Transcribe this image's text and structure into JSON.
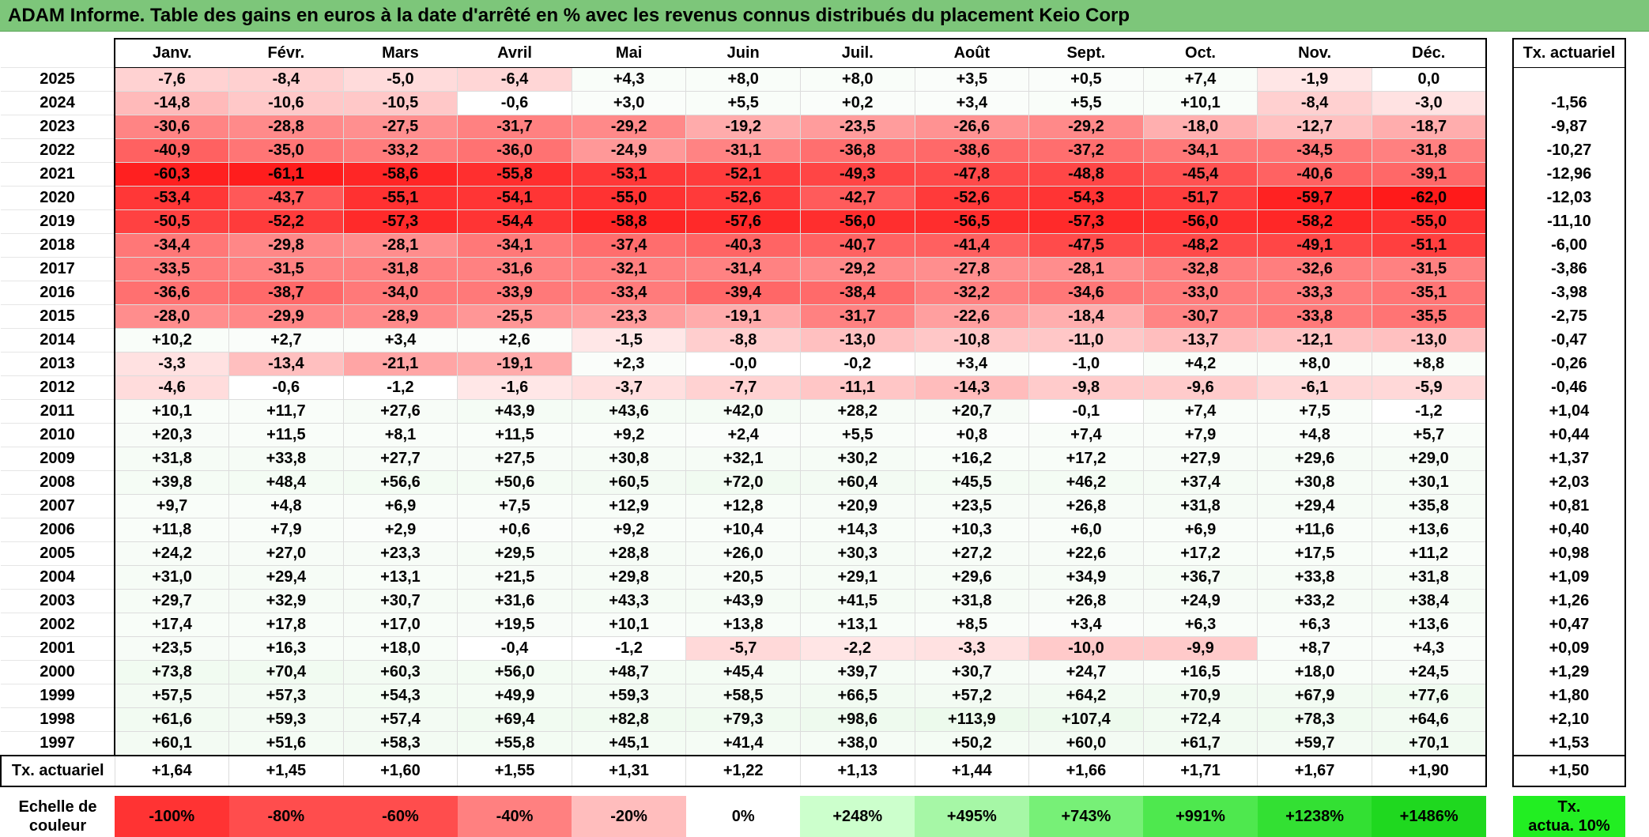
{
  "title": "ADAM Informe. Table des gains en euros à la date d'arrêté en % avec les revenus connus distribués du placement Keio Corp",
  "months": [
    "Janv.",
    "Févr.",
    "Mars",
    "Avril",
    "Mai",
    "Juin",
    "Juil.",
    "Août",
    "Sept.",
    "Oct.",
    "Nov.",
    "Déc."
  ],
  "tx_header": "Tx. actuariel",
  "rows": [
    {
      "year": "2025",
      "values": [
        "-7,6",
        "-8,4",
        "-5,0",
        "-6,4",
        "+4,3",
        "+8,0",
        "+8,0",
        "+3,5",
        "+0,5",
        "+7,4",
        "-1,9",
        "0,0"
      ],
      "tx": ""
    },
    {
      "year": "2024",
      "values": [
        "-14,8",
        "-10,6",
        "-10,5",
        "-0,6",
        "+3,0",
        "+5,5",
        "+0,2",
        "+3,4",
        "+5,5",
        "+10,1",
        "-8,4",
        "-3,0"
      ],
      "tx": "-1,56"
    },
    {
      "year": "2023",
      "values": [
        "-30,6",
        "-28,8",
        "-27,5",
        "-31,7",
        "-29,2",
        "-19,2",
        "-23,5",
        "-26,6",
        "-29,2",
        "-18,0",
        "-12,7",
        "-18,7"
      ],
      "tx": "-9,87"
    },
    {
      "year": "2022",
      "values": [
        "-40,9",
        "-35,0",
        "-33,2",
        "-36,0",
        "-24,9",
        "-31,1",
        "-36,8",
        "-38,6",
        "-37,2",
        "-34,1",
        "-34,5",
        "-31,8"
      ],
      "tx": "-10,27"
    },
    {
      "year": "2021",
      "values": [
        "-60,3",
        "-61,1",
        "-58,6",
        "-55,8",
        "-53,1",
        "-52,1",
        "-49,3",
        "-47,8",
        "-48,8",
        "-45,4",
        "-40,6",
        "-39,1"
      ],
      "tx": "-12,96"
    },
    {
      "year": "2020",
      "values": [
        "-53,4",
        "-43,7",
        "-55,1",
        "-54,1",
        "-55,0",
        "-52,6",
        "-42,7",
        "-52,6",
        "-54,3",
        "-51,7",
        "-59,7",
        "-62,0"
      ],
      "tx": "-12,03"
    },
    {
      "year": "2019",
      "values": [
        "-50,5",
        "-52,2",
        "-57,3",
        "-54,4",
        "-58,8",
        "-57,6",
        "-56,0",
        "-56,5",
        "-57,3",
        "-56,0",
        "-58,2",
        "-55,0"
      ],
      "tx": "-11,10"
    },
    {
      "year": "2018",
      "values": [
        "-34,4",
        "-29,8",
        "-28,1",
        "-34,1",
        "-37,4",
        "-40,3",
        "-40,7",
        "-41,4",
        "-47,5",
        "-48,2",
        "-49,1",
        "-51,1"
      ],
      "tx": "-6,00"
    },
    {
      "year": "2017",
      "values": [
        "-33,5",
        "-31,5",
        "-31,8",
        "-31,6",
        "-32,1",
        "-31,4",
        "-29,2",
        "-27,8",
        "-28,1",
        "-32,8",
        "-32,6",
        "-31,5"
      ],
      "tx": "-3,86"
    },
    {
      "year": "2016",
      "values": [
        "-36,6",
        "-38,7",
        "-34,0",
        "-33,9",
        "-33,4",
        "-39,4",
        "-38,4",
        "-32,2",
        "-34,6",
        "-33,0",
        "-33,3",
        "-35,1"
      ],
      "tx": "-3,98"
    },
    {
      "year": "2015",
      "values": [
        "-28,0",
        "-29,9",
        "-28,9",
        "-25,5",
        "-23,3",
        "-19,1",
        "-31,7",
        "-22,6",
        "-18,4",
        "-30,7",
        "-33,8",
        "-35,5"
      ],
      "tx": "-2,75"
    },
    {
      "year": "2014",
      "values": [
        "+10,2",
        "+2,7",
        "+3,4",
        "+2,6",
        "-1,5",
        "-8,8",
        "-13,0",
        "-10,8",
        "-11,0",
        "-13,7",
        "-12,1",
        "-13,0"
      ],
      "tx": "-0,47"
    },
    {
      "year": "2013",
      "values": [
        "-3,3",
        "-13,4",
        "-21,1",
        "-19,1",
        "+2,3",
        "-0,0",
        "-0,2",
        "+3,4",
        "-1,0",
        "+4,2",
        "+8,0",
        "+8,8"
      ],
      "tx": "-0,26"
    },
    {
      "year": "2012",
      "values": [
        "-4,6",
        "-0,6",
        "-1,2",
        "-1,6",
        "-3,7",
        "-7,7",
        "-11,1",
        "-14,3",
        "-9,8",
        "-9,6",
        "-6,1",
        "-5,9"
      ],
      "tx": "-0,46"
    },
    {
      "year": "2011",
      "values": [
        "+10,1",
        "+11,7",
        "+27,6",
        "+43,9",
        "+43,6",
        "+42,0",
        "+28,2",
        "+20,7",
        "-0,1",
        "+7,4",
        "+7,5",
        "-1,2"
      ],
      "tx": "+1,04"
    },
    {
      "year": "2010",
      "values": [
        "+20,3",
        "+11,5",
        "+8,1",
        "+11,5",
        "+9,2",
        "+2,4",
        "+5,5",
        "+0,8",
        "+7,4",
        "+7,9",
        "+4,8",
        "+5,7"
      ],
      "tx": "+0,44"
    },
    {
      "year": "2009",
      "values": [
        "+31,8",
        "+33,8",
        "+27,7",
        "+27,5",
        "+30,8",
        "+32,1",
        "+30,2",
        "+16,2",
        "+17,2",
        "+27,9",
        "+29,6",
        "+29,0"
      ],
      "tx": "+1,37"
    },
    {
      "year": "2008",
      "values": [
        "+39,8",
        "+48,4",
        "+56,6",
        "+50,6",
        "+60,5",
        "+72,0",
        "+60,4",
        "+45,5",
        "+46,2",
        "+37,4",
        "+30,8",
        "+30,1"
      ],
      "tx": "+2,03"
    },
    {
      "year": "2007",
      "values": [
        "+9,7",
        "+4,8",
        "+6,9",
        "+7,5",
        "+12,9",
        "+12,8",
        "+20,9",
        "+23,5",
        "+26,8",
        "+31,8",
        "+29,4",
        "+35,8"
      ],
      "tx": "+0,81"
    },
    {
      "year": "2006",
      "values": [
        "+11,8",
        "+7,9",
        "+2,9",
        "+0,6",
        "+9,2",
        "+10,4",
        "+14,3",
        "+10,3",
        "+6,0",
        "+6,9",
        "+11,6",
        "+13,6"
      ],
      "tx": "+0,40"
    },
    {
      "year": "2005",
      "values": [
        "+24,2",
        "+27,0",
        "+23,3",
        "+29,5",
        "+28,8",
        "+26,0",
        "+30,3",
        "+27,2",
        "+22,6",
        "+17,2",
        "+17,5",
        "+11,2"
      ],
      "tx": "+0,98"
    },
    {
      "year": "2004",
      "values": [
        "+31,0",
        "+29,4",
        "+13,1",
        "+21,5",
        "+29,8",
        "+20,5",
        "+29,1",
        "+29,6",
        "+34,9",
        "+36,7",
        "+33,8",
        "+31,8"
      ],
      "tx": "+1,09"
    },
    {
      "year": "2003",
      "values": [
        "+29,7",
        "+32,9",
        "+30,7",
        "+31,6",
        "+43,3",
        "+43,9",
        "+41,5",
        "+31,8",
        "+26,8",
        "+24,9",
        "+33,2",
        "+38,4"
      ],
      "tx": "+1,26"
    },
    {
      "year": "2002",
      "values": [
        "+17,4",
        "+17,8",
        "+17,0",
        "+19,5",
        "+10,1",
        "+13,8",
        "+13,1",
        "+8,5",
        "+3,4",
        "+6,3",
        "+6,3",
        "+13,6"
      ],
      "tx": "+0,47"
    },
    {
      "year": "2001",
      "values": [
        "+23,5",
        "+16,3",
        "+18,0",
        "-0,4",
        "-1,2",
        "-5,7",
        "-2,2",
        "-3,3",
        "-10,0",
        "-9,9",
        "+8,7",
        "+4,3"
      ],
      "tx": "+0,09"
    },
    {
      "year": "2000",
      "values": [
        "+73,8",
        "+70,4",
        "+60,3",
        "+56,0",
        "+48,7",
        "+45,4",
        "+39,7",
        "+30,7",
        "+24,7",
        "+16,5",
        "+18,0",
        "+24,5"
      ],
      "tx": "+1,29"
    },
    {
      "year": "1999",
      "values": [
        "+57,5",
        "+57,3",
        "+54,3",
        "+49,9",
        "+59,3",
        "+58,5",
        "+66,5",
        "+57,2",
        "+64,2",
        "+70,9",
        "+67,9",
        "+77,6"
      ],
      "tx": "+1,80"
    },
    {
      "year": "1998",
      "values": [
        "+61,6",
        "+59,3",
        "+57,4",
        "+69,4",
        "+82,8",
        "+79,3",
        "+98,6",
        "+113,9",
        "+107,4",
        "+72,4",
        "+78,3",
        "+64,6"
      ],
      "tx": "+2,10"
    },
    {
      "year": "1997",
      "values": [
        "+60,1",
        "+51,6",
        "+58,3",
        "+55,8",
        "+45,1",
        "+41,4",
        "+38,0",
        "+50,2",
        "+60,0",
        "+61,7",
        "+59,7",
        "+70,1"
      ],
      "tx": "+1,53"
    }
  ],
  "summary": {
    "label": "Tx. actuariel",
    "values": [
      "+1,64",
      "+1,45",
      "+1,60",
      "+1,55",
      "+1,31",
      "+1,22",
      "+1,13",
      "+1,44",
      "+1,66",
      "+1,71",
      "+1,67",
      "+1,90"
    ],
    "tx": "+1,50"
  },
  "scale": {
    "label_line1": "Echelle de",
    "label_line2": "couleur",
    "items": [
      "-100%",
      "-80%",
      "-60%",
      "-40%",
      "-20%",
      "0%",
      "+248%",
      "+495%",
      "+743%",
      "+991%",
      "+1238%",
      "+1486%"
    ],
    "tx_line1": "Tx.",
    "tx_line2": "actua. 10%"
  },
  "colors": {
    "title_bg": "#7dc67a",
    "scale_bg": [
      "#ff3333",
      "#ff4d4d",
      "#ff4d4d",
      "#ff8080",
      "#ffbdbd",
      "#ffffff",
      "#ccffcc",
      "#a6f7a6",
      "#77f077",
      "#4ee84e",
      "#33e033",
      "#1fd81f"
    ],
    "scale_tx_bg": "#22ee22"
  }
}
